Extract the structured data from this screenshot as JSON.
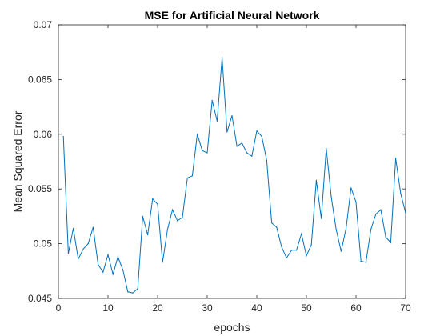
{
  "chart_data": {
    "type": "line",
    "title": "MSE for Artificial Neural Network",
    "xlabel": "epochs",
    "ylabel": "Mean Squared Error",
    "xlim": [
      0,
      70
    ],
    "ylim": [
      0.045,
      0.07
    ],
    "xticks": [
      "0",
      "10",
      "20",
      "30",
      "40",
      "50",
      "60",
      "70"
    ],
    "yticks": [
      "0.045",
      "0.05",
      "0.055",
      "0.06",
      "0.065",
      "0.07"
    ],
    "grid": false,
    "line_color": "#0072BD",
    "series": [
      {
        "x": [
          1,
          2,
          3,
          4,
          5,
          6,
          7,
          8,
          9,
          10,
          11,
          12,
          13,
          14,
          15,
          16,
          17,
          18,
          19,
          20,
          21,
          22,
          23,
          24,
          25,
          26,
          27,
          28,
          29,
          30,
          31,
          32,
          33,
          34,
          35,
          36,
          37,
          38,
          39,
          40,
          41,
          42,
          43,
          44,
          45,
          46,
          47,
          48,
          49,
          50,
          51,
          52,
          53,
          54,
          55,
          56,
          57,
          58,
          59,
          60,
          61,
          62,
          63,
          64,
          65,
          66,
          67,
          68,
          69,
          70
        ],
        "values": [
          0.0598,
          0.0491,
          0.0514,
          0.0486,
          0.0495,
          0.05,
          0.0515,
          0.0481,
          0.0474,
          0.049,
          0.0472,
          0.0488,
          0.0476,
          0.0456,
          0.0455,
          0.0459,
          0.0525,
          0.0508,
          0.0541,
          0.0536,
          0.0483,
          0.0513,
          0.0531,
          0.0521,
          0.0524,
          0.056,
          0.0562,
          0.06,
          0.0585,
          0.0583,
          0.0631,
          0.0612,
          0.067,
          0.0602,
          0.0617,
          0.0589,
          0.0592,
          0.0583,
          0.058,
          0.0603,
          0.0598,
          0.0576,
          0.0519,
          0.0515,
          0.0497,
          0.0487,
          0.0494,
          0.0494,
          0.0509,
          0.0489,
          0.0499,
          0.0558,
          0.0523,
          0.0587,
          0.0543,
          0.0513,
          0.0493,
          0.0514,
          0.0551,
          0.0538,
          0.0484,
          0.0483,
          0.0513,
          0.0527,
          0.0531,
          0.0506,
          0.0501,
          0.0578,
          0.0546,
          0.0528
        ]
      }
    ]
  }
}
